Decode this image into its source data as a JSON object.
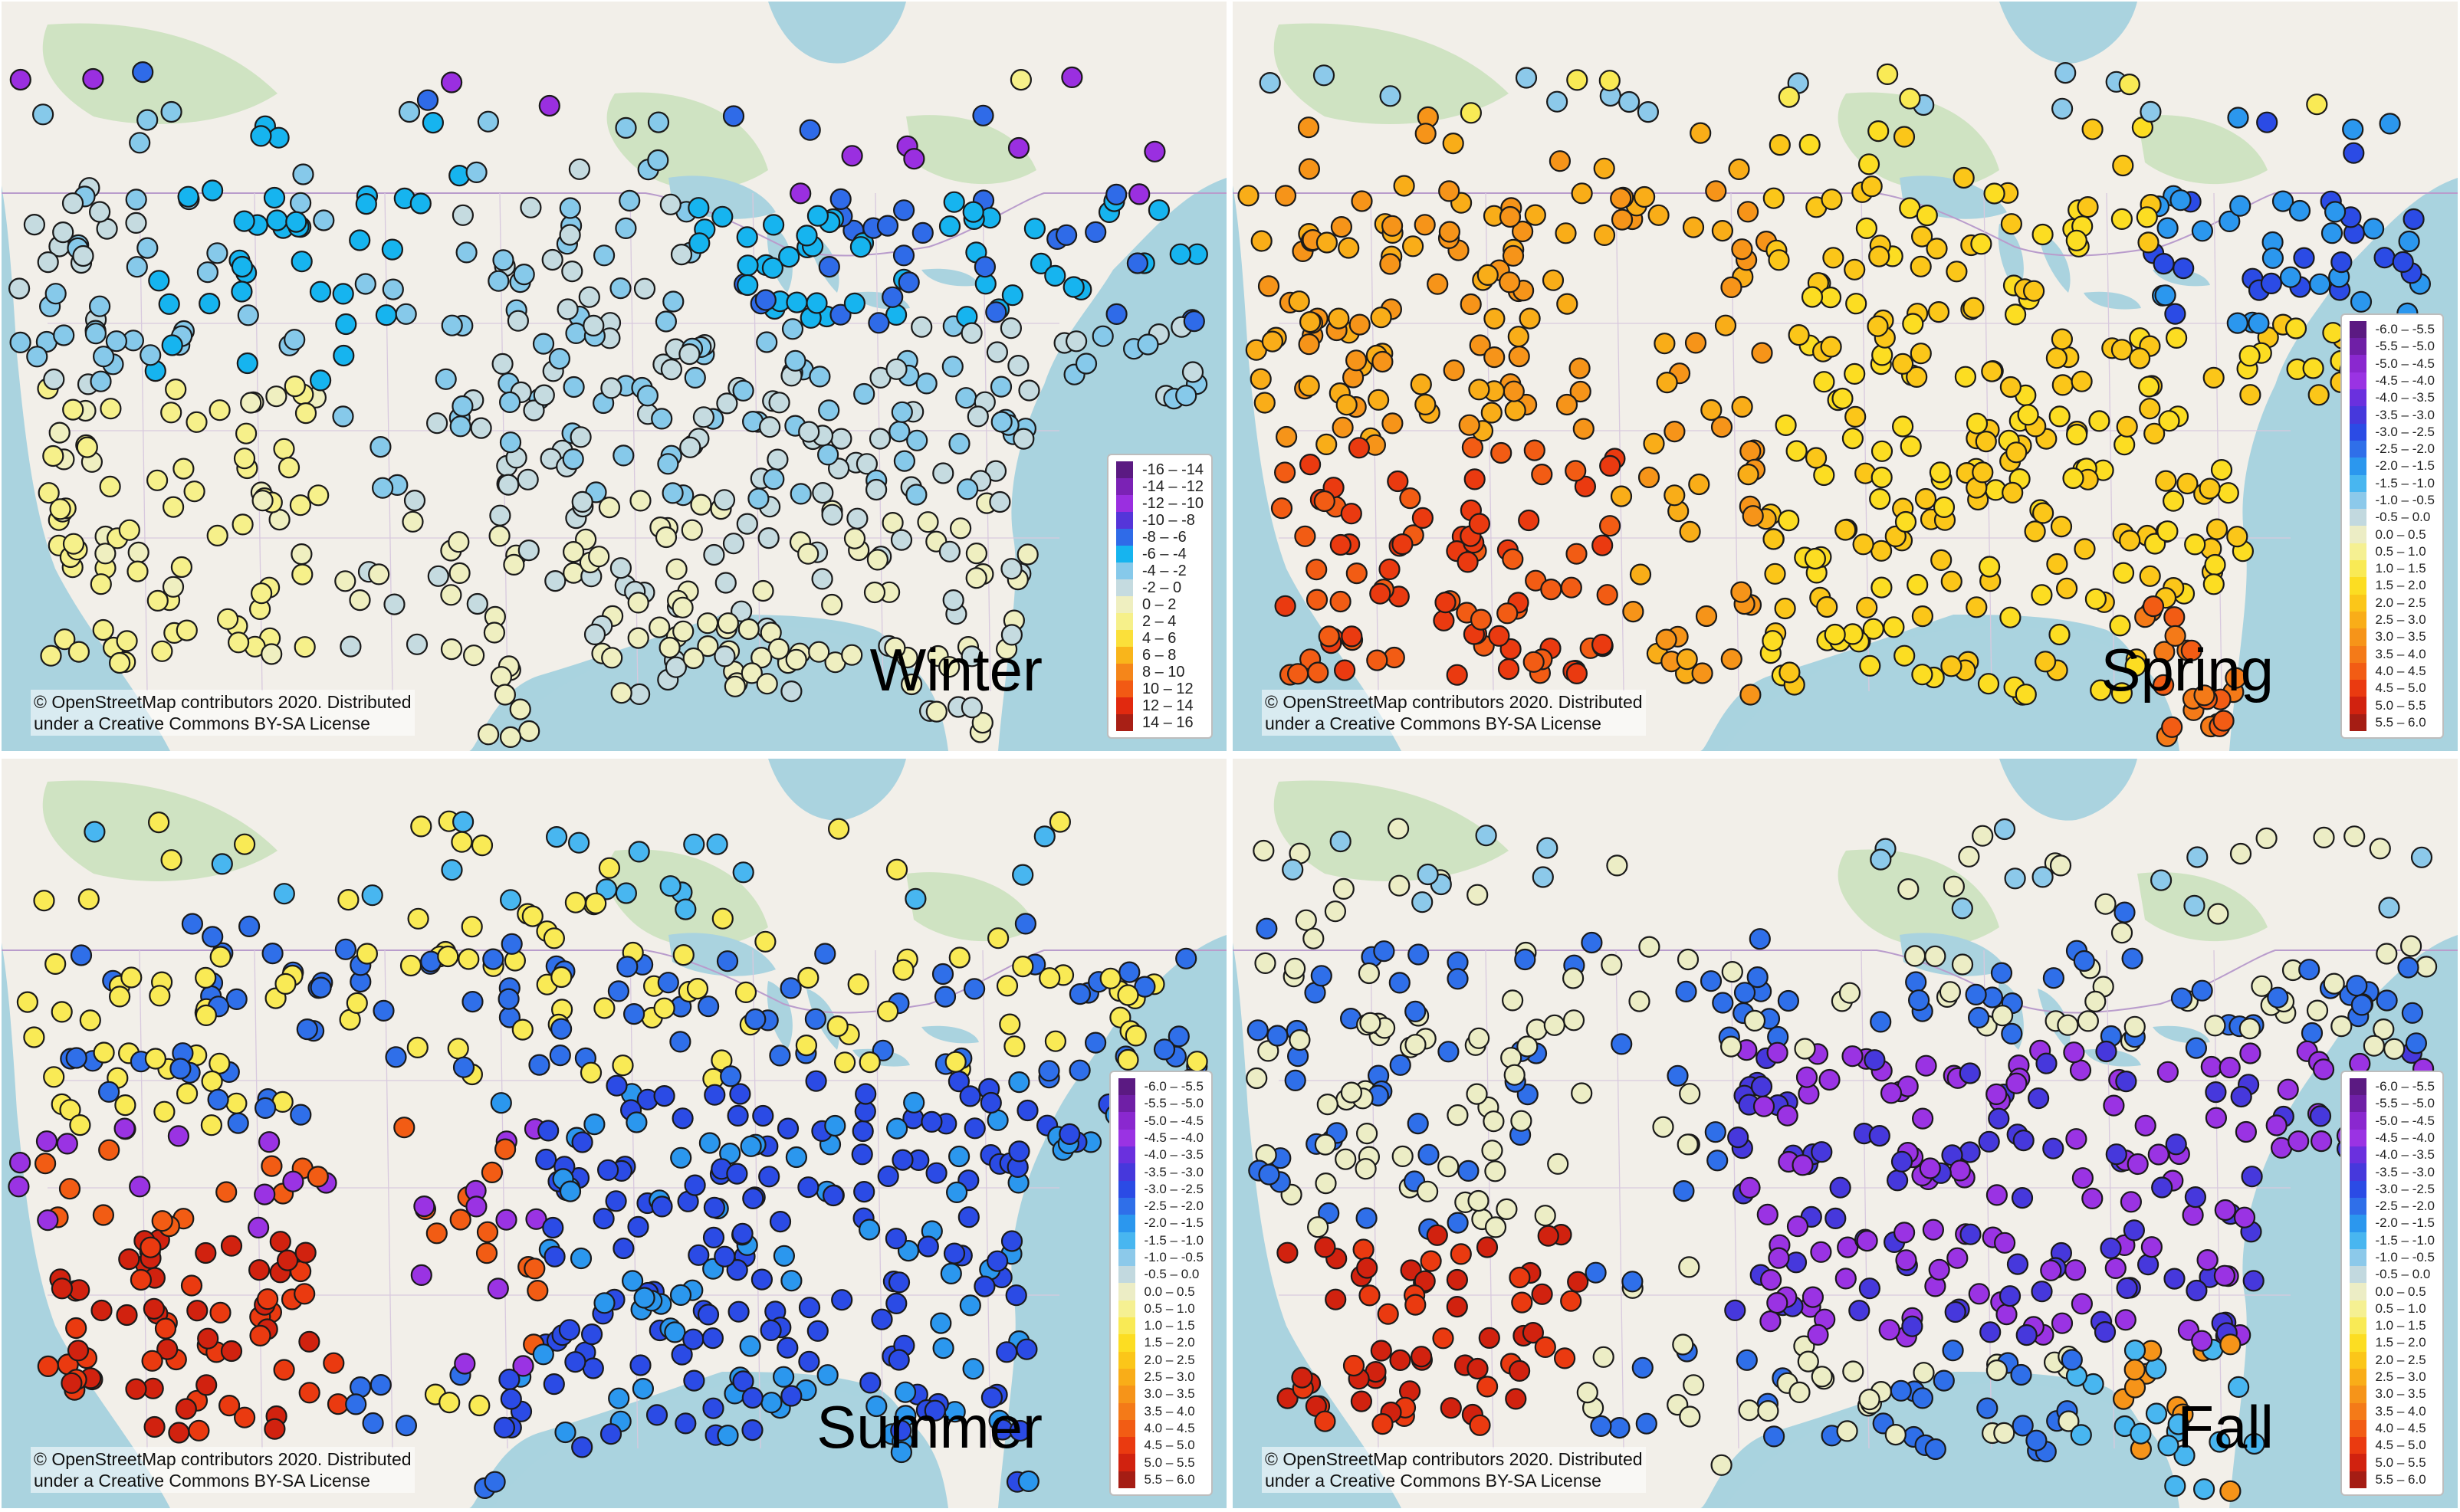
{
  "panels": [
    {
      "id": "winter",
      "label": "Winter",
      "attribution": [
        "© OpenStreetMap contributors 2020. Distributed",
        "under a Creative Commons BY-SA License"
      ],
      "legend": "winter",
      "pattern": "winter"
    },
    {
      "id": "spring",
      "label": "Spring",
      "attribution": [
        "© OpenStreetMap contributors 2020. Distributed",
        "under a Creative Commons BY-SA License"
      ],
      "legend": "other",
      "pattern": "spring"
    },
    {
      "id": "summer",
      "label": "Summer",
      "attribution": [
        "© OpenStreetMap contributors 2020. Distributed",
        "under a Creative Commons BY-SA License"
      ],
      "legend": "other",
      "pattern": "summer"
    },
    {
      "id": "fall",
      "label": "Fall",
      "attribution": [
        "© OpenStreetMap contributors 2020. Distributed",
        "under a Creative Commons BY-SA License"
      ],
      "legend": "other",
      "pattern": "fall"
    }
  ],
  "legends": {
    "winter": [
      {
        "label": "-16 – -14",
        "color": "#5b1a82"
      },
      {
        "label": "-14 – -12",
        "color": "#7b22b5"
      },
      {
        "label": "-12 – -10",
        "color": "#9a2fe0"
      },
      {
        "label": "-10 – -8",
        "color": "#5535d9"
      },
      {
        "label": "-8 – -6",
        "color": "#2f6be8"
      },
      {
        "label": "-6 – -4",
        "color": "#16b4ef"
      },
      {
        "label": "-4 – -2",
        "color": "#86c9ea"
      },
      {
        "label": "-2 – 0",
        "color": "#c5dbe0"
      },
      {
        "label": "0 – 2",
        "color": "#efefc0"
      },
      {
        "label": "2 – 4",
        "color": "#f6f08a"
      },
      {
        "label": "4 – 6",
        "color": "#fbe03a"
      },
      {
        "label": "6 – 8",
        "color": "#f9b51b"
      },
      {
        "label": "8 – 10",
        "color": "#f5861a"
      },
      {
        "label": "10 – 12",
        "color": "#f25a14"
      },
      {
        "label": "12 – 14",
        "color": "#e1290f"
      },
      {
        "label": "14 – 16",
        "color": "#a81f15"
      }
    ],
    "other": [
      {
        "label": "-6.0 – -5.5",
        "color": "#5b1a82"
      },
      {
        "label": "-5.5 – -5.0",
        "color": "#6f1fa6"
      },
      {
        "label": "-5.0 – -4.5",
        "color": "#8a28cf"
      },
      {
        "label": "-4.5 – -4.0",
        "color": "#9a33e3"
      },
      {
        "label": "-4.0 – -3.5",
        "color": "#6a30de"
      },
      {
        "label": "-3.5 – -3.0",
        "color": "#4638dc"
      },
      {
        "label": "-3.0 – -2.5",
        "color": "#2b4be5"
      },
      {
        "label": "-2.5 – -2.0",
        "color": "#2f6fe9"
      },
      {
        "label": "-2.0 – -1.5",
        "color": "#2b97ee"
      },
      {
        "label": "-1.5 – -1.0",
        "color": "#48b6f0"
      },
      {
        "label": "-1.0 – -0.5",
        "color": "#8cc9ea"
      },
      {
        "label": "-0.5 – 0.0",
        "color": "#c2d9df"
      },
      {
        "label": "0.0 – 0.5",
        "color": "#ecedc5"
      },
      {
        "label": "0.5 – 1.0",
        "color": "#f5f092"
      },
      {
        "label": "1.0 – 1.5",
        "color": "#f9ea55"
      },
      {
        "label": "1.5 – 2.0",
        "color": "#fcdd22"
      },
      {
        "label": "2.0 – 2.5",
        "color": "#fbc619"
      },
      {
        "label": "2.5 – 3.0",
        "color": "#f9ad18"
      },
      {
        "label": "3.0 – 3.5",
        "color": "#f69419"
      },
      {
        "label": "3.5 – 4.0",
        "color": "#f47a18"
      },
      {
        "label": "4.0 – 4.5",
        "color": "#f25c14"
      },
      {
        "label": "4.5 – 5.0",
        "color": "#ea3a10"
      },
      {
        "label": "5.0 – 5.5",
        "color": "#d1220f"
      },
      {
        "label": "5.5 – 6.0",
        "color": "#a51d14"
      }
    ]
  }
}
